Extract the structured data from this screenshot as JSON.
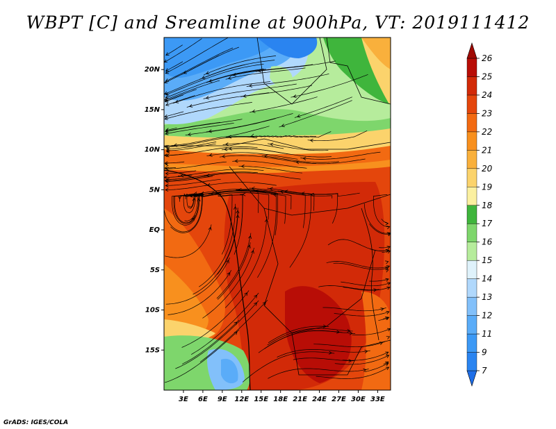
{
  "title": "WBPT [C] and Sreamline at 900hPa, VT: 2019111412",
  "credit": "GrADS: IGES/COLA",
  "map": {
    "lon_range": [
      0,
      35
    ],
    "lat_range": [
      -20,
      24
    ],
    "lat_ticks": [
      {
        "value": 20,
        "label": "20N"
      },
      {
        "value": 15,
        "label": "15N"
      },
      {
        "value": 10,
        "label": "10N"
      },
      {
        "value": 5,
        "label": "5N"
      },
      {
        "value": 0,
        "label": "EQ"
      },
      {
        "value": -5,
        "label": "5S"
      },
      {
        "value": -10,
        "label": "10S"
      },
      {
        "value": -15,
        "label": "15S"
      }
    ],
    "lon_ticks": [
      {
        "value": 3,
        "label": "3E"
      },
      {
        "value": 6,
        "label": "6E"
      },
      {
        "value": 9,
        "label": "9E"
      },
      {
        "value": 12,
        "label": "12E"
      },
      {
        "value": 15,
        "label": "15E"
      },
      {
        "value": 18,
        "label": "18E"
      },
      {
        "value": 21,
        "label": "21E"
      },
      {
        "value": 24,
        "label": "24E"
      },
      {
        "value": 27,
        "label": "27E"
      },
      {
        "value": 30,
        "label": "30E"
      },
      {
        "value": 33,
        "label": "33E"
      }
    ]
  },
  "colorbar": {
    "levels": [
      "7",
      "9",
      "11",
      "12",
      "13",
      "14",
      "15",
      "16",
      "17",
      "18",
      "19",
      "20",
      "21",
      "22",
      "23",
      "24",
      "25",
      "26"
    ],
    "colors": [
      "#1e6ee8",
      "#2a84f0",
      "#3c99f5",
      "#5aacf8",
      "#82c0fa",
      "#b0d8fc",
      "#dff2fb",
      "#b6ec9c",
      "#7ed66c",
      "#3fb53c",
      "#fbf0a0",
      "#fbd36c",
      "#f9b03c",
      "#f8901e",
      "#f26a12",
      "#e4460c",
      "#d22a08",
      "#b80d06",
      "#a00a04"
    ]
  }
}
